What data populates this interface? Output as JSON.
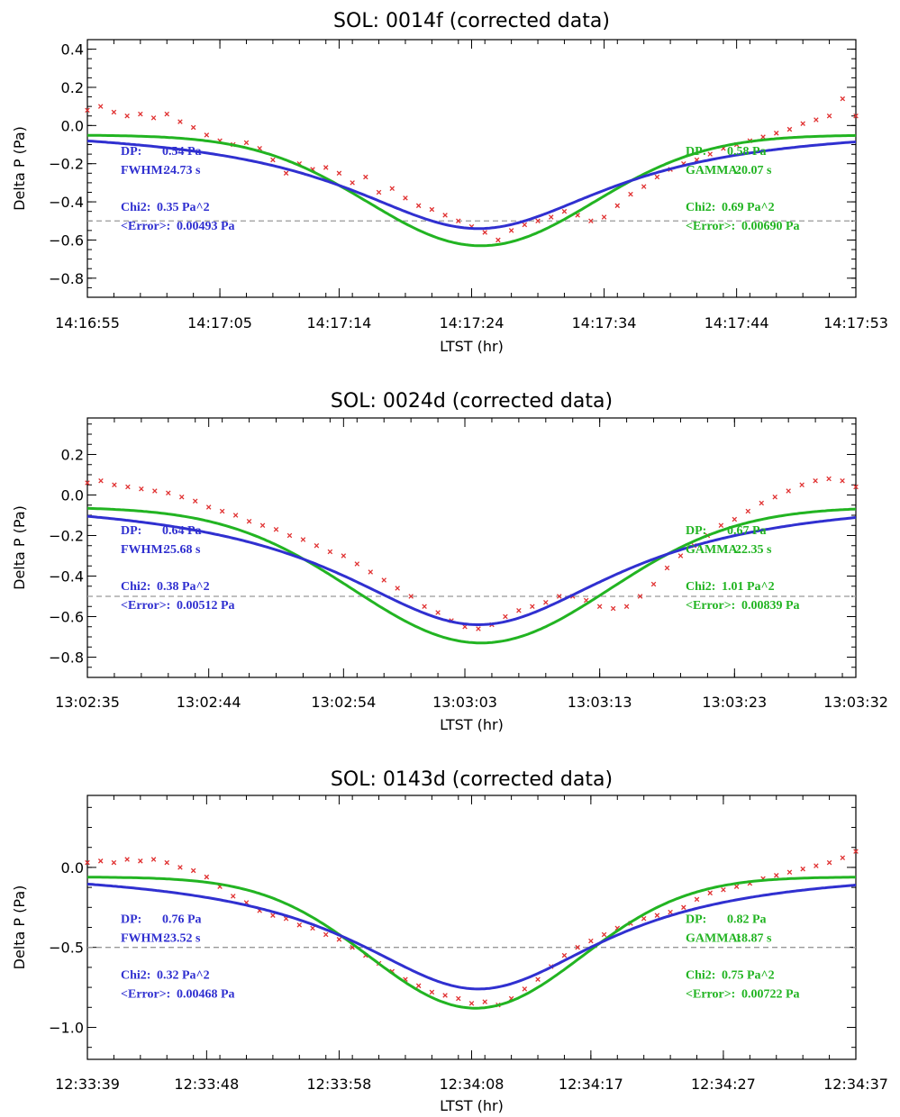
{
  "colors": {
    "lorentz": "#3030d0",
    "gauss": "#22b422",
    "data": "#e03030",
    "ref": "#999999"
  },
  "chart_data": [
    {
      "type": "line",
      "title": "SOL: 0014f (corrected data)",
      "xlabel": "LTST (hr)",
      "ylabel": "Delta P (Pa)",
      "xlim": [
        0,
        58
      ],
      "ylim": [
        -0.9,
        0.45
      ],
      "x_ticks": [
        {
          "x": 0,
          "label": "14:16:55"
        },
        {
          "x": 10,
          "label": "14:17:05"
        },
        {
          "x": 19,
          "label": "14:17:14"
        },
        {
          "x": 29,
          "label": "14:17:24"
        },
        {
          "x": 39,
          "label": "14:17:34"
        },
        {
          "x": 49,
          "label": "14:17:44"
        },
        {
          "x": 58,
          "label": "14:17:53"
        }
      ],
      "y_ticks": [
        {
          "y": 0.4,
          "label": "0.4"
        },
        {
          "y": 0.2,
          "label": "0.2"
        },
        {
          "y": 0.0,
          "label": "0.0"
        },
        {
          "y": -0.2,
          "label": "−0.2"
        },
        {
          "y": -0.4,
          "label": "−0.4"
        },
        {
          "y": -0.6,
          "label": "−0.6"
        },
        {
          "y": -0.8,
          "label": "−0.8"
        }
      ],
      "ref_line": -0.5,
      "lorentz": {
        "amp": 0.54,
        "center": 29.5,
        "fwhm": 24.73,
        "baseline": 0.0
      },
      "gauss": {
        "amp": 0.58,
        "center": 29.7,
        "fwhm": 20.07,
        "baseline": -0.05
      },
      "data_points": [
        [
          0,
          0.08
        ],
        [
          1,
          0.1
        ],
        [
          2,
          0.07
        ],
        [
          3,
          0.05
        ],
        [
          4,
          0.06
        ],
        [
          5,
          0.04
        ],
        [
          6,
          0.06
        ],
        [
          7,
          0.02
        ],
        [
          8,
          -0.01
        ],
        [
          9,
          -0.05
        ],
        [
          10,
          -0.08
        ],
        [
          11,
          -0.1
        ],
        [
          12,
          -0.09
        ],
        [
          13,
          -0.12
        ],
        [
          14,
          -0.18
        ],
        [
          15,
          -0.25
        ],
        [
          16,
          -0.2
        ],
        [
          17,
          -0.23
        ],
        [
          18,
          -0.22
        ],
        [
          19,
          -0.25
        ],
        [
          20,
          -0.3
        ],
        [
          21,
          -0.27
        ],
        [
          22,
          -0.35
        ],
        [
          23,
          -0.33
        ],
        [
          24,
          -0.38
        ],
        [
          25,
          -0.42
        ],
        [
          26,
          -0.44
        ],
        [
          27,
          -0.47
        ],
        [
          28,
          -0.5
        ],
        [
          29,
          -0.53
        ],
        [
          30,
          -0.56
        ],
        [
          31,
          -0.6
        ],
        [
          32,
          -0.55
        ],
        [
          33,
          -0.52
        ],
        [
          34,
          -0.5
        ],
        [
          35,
          -0.48
        ],
        [
          36,
          -0.45
        ],
        [
          37,
          -0.47
        ],
        [
          38,
          -0.5
        ],
        [
          39,
          -0.48
        ],
        [
          40,
          -0.42
        ],
        [
          41,
          -0.36
        ],
        [
          42,
          -0.32
        ],
        [
          43,
          -0.27
        ],
        [
          44,
          -0.23
        ],
        [
          45,
          -0.2
        ],
        [
          46,
          -0.18
        ],
        [
          47,
          -0.15
        ],
        [
          48,
          -0.12
        ],
        [
          49,
          -0.1
        ],
        [
          50,
          -0.08
        ],
        [
          51,
          -0.06
        ],
        [
          52,
          -0.04
        ],
        [
          53,
          -0.02
        ],
        [
          54,
          0.01
        ],
        [
          55,
          0.03
        ],
        [
          56,
          0.05
        ],
        [
          57,
          0.14
        ],
        [
          58,
          0.05
        ]
      ],
      "left_text": {
        "dp_label": "DP:",
        "dp_value": "0.54 Pa",
        "width_label": "FWHM:",
        "width_value": "24.73 s",
        "chi_label": "Chi2:",
        "chi_value": "0.35 Pa^2",
        "err_label": "<Error>:",
        "err_value": "0.00493 Pa"
      },
      "right_text": {
        "dp_label": "DP:",
        "dp_value": "0.58 Pa",
        "width_label": "GAMMA:",
        "width_value": "20.07 s",
        "chi_label": "Chi2:",
        "chi_value": "0.69 Pa^2",
        "err_label": "<Error>:",
        "err_value": "0.00690 Pa"
      }
    },
    {
      "type": "line",
      "title": "SOL: 0024d (corrected data)",
      "xlabel": "LTST (hr)",
      "ylabel": "Delta P (Pa)",
      "xlim": [
        0,
        57
      ],
      "ylim": [
        -0.9,
        0.38
      ],
      "x_ticks": [
        {
          "x": 0,
          "label": "13:02:35"
        },
        {
          "x": 9,
          "label": "13:02:44"
        },
        {
          "x": 19,
          "label": "13:02:54"
        },
        {
          "x": 28,
          "label": "13:03:03"
        },
        {
          "x": 38,
          "label": "13:03:13"
        },
        {
          "x": 48,
          "label": "13:03:23"
        },
        {
          "x": 57,
          "label": "13:03:32"
        }
      ],
      "y_ticks": [
        {
          "y": 0.2,
          "label": "0.2"
        },
        {
          "y": 0.0,
          "label": "0.0"
        },
        {
          "y": -0.2,
          "label": "−0.2"
        },
        {
          "y": -0.4,
          "label": "−0.4"
        },
        {
          "y": -0.6,
          "label": "−0.6"
        },
        {
          "y": -0.8,
          "label": "−0.8"
        }
      ],
      "ref_line": -0.5,
      "lorentz": {
        "amp": 0.64,
        "center": 29.0,
        "fwhm": 25.68,
        "baseline": 0.0
      },
      "gauss": {
        "amp": 0.67,
        "center": 29.2,
        "fwhm": 22.35,
        "baseline": -0.06
      },
      "data_points": [
        [
          0,
          0.06
        ],
        [
          1,
          0.07
        ],
        [
          2,
          0.05
        ],
        [
          3,
          0.04
        ],
        [
          4,
          0.03
        ],
        [
          5,
          0.02
        ],
        [
          6,
          0.01
        ],
        [
          7,
          -0.01
        ],
        [
          8,
          -0.03
        ],
        [
          9,
          -0.06
        ],
        [
          10,
          -0.08
        ],
        [
          11,
          -0.1
        ],
        [
          12,
          -0.13
        ],
        [
          13,
          -0.15
        ],
        [
          14,
          -0.17
        ],
        [
          15,
          -0.2
        ],
        [
          16,
          -0.22
        ],
        [
          17,
          -0.25
        ],
        [
          18,
          -0.28
        ],
        [
          19,
          -0.3
        ],
        [
          20,
          -0.34
        ],
        [
          21,
          -0.38
        ],
        [
          22,
          -0.42
        ],
        [
          23,
          -0.46
        ],
        [
          24,
          -0.5
        ],
        [
          25,
          -0.55
        ],
        [
          26,
          -0.58
        ],
        [
          27,
          -0.62
        ],
        [
          28,
          -0.65
        ],
        [
          29,
          -0.66
        ],
        [
          30,
          -0.64
        ],
        [
          31,
          -0.6
        ],
        [
          32,
          -0.57
        ],
        [
          33,
          -0.55
        ],
        [
          34,
          -0.53
        ],
        [
          35,
          -0.5
        ],
        [
          36,
          -0.5
        ],
        [
          37,
          -0.52
        ],
        [
          38,
          -0.55
        ],
        [
          39,
          -0.56
        ],
        [
          40,
          -0.55
        ],
        [
          41,
          -0.5
        ],
        [
          42,
          -0.44
        ],
        [
          43,
          -0.36
        ],
        [
          44,
          -0.3
        ],
        [
          45,
          -0.25
        ],
        [
          46,
          -0.2
        ],
        [
          47,
          -0.15
        ],
        [
          48,
          -0.12
        ],
        [
          49,
          -0.08
        ],
        [
          50,
          -0.04
        ],
        [
          51,
          -0.01
        ],
        [
          52,
          0.02
        ],
        [
          53,
          0.05
        ],
        [
          54,
          0.07
        ],
        [
          55,
          0.08
        ],
        [
          56,
          0.07
        ],
        [
          57,
          0.04
        ]
      ],
      "left_text": {
        "dp_label": "DP:",
        "dp_value": "0.64 Pa",
        "width_label": "FWHM:",
        "width_value": "25.68 s",
        "chi_label": "Chi2:",
        "chi_value": "0.38 Pa^2",
        "err_label": "<Error>:",
        "err_value": "0.00512 Pa"
      },
      "right_text": {
        "dp_label": "DP:",
        "dp_value": "0.67 Pa",
        "width_label": "GAMMA:",
        "width_value": "22.35 s",
        "chi_label": "Chi2:",
        "chi_value": "1.01 Pa^2",
        "err_label": "<Error>:",
        "err_value": "0.00839 Pa"
      }
    },
    {
      "type": "line",
      "title": "SOL: 0143d (corrected data)",
      "xlabel": "LTST (hr)",
      "ylabel": "Delta P (Pa)",
      "xlim": [
        0,
        58
      ],
      "ylim": [
        -1.2,
        0.45
      ],
      "x_ticks": [
        {
          "x": 0,
          "label": "12:33:39"
        },
        {
          "x": 9,
          "label": "12:33:48"
        },
        {
          "x": 19,
          "label": "12:33:58"
        },
        {
          "x": 29,
          "label": "12:34:08"
        },
        {
          "x": 38,
          "label": "12:34:17"
        },
        {
          "x": 48,
          "label": "12:34:27"
        },
        {
          "x": 58,
          "label": "12:34:37"
        }
      ],
      "y_ticks": [
        {
          "y": 0.0,
          "label": "0.0"
        },
        {
          "y": -0.5,
          "label": "−0.5"
        },
        {
          "y": -1.0,
          "label": "−1.0"
        }
      ],
      "ref_line": -0.5,
      "lorentz": {
        "amp": 0.76,
        "center": 29.5,
        "fwhm": 23.52,
        "baseline": 0.0
      },
      "gauss": {
        "amp": 0.82,
        "center": 29.3,
        "fwhm": 18.87,
        "baseline": -0.06
      },
      "data_points": [
        [
          0,
          0.03
        ],
        [
          1,
          0.04
        ],
        [
          2,
          0.03
        ],
        [
          3,
          0.05
        ],
        [
          4,
          0.04
        ],
        [
          5,
          0.05
        ],
        [
          6,
          0.03
        ],
        [
          7,
          0.0
        ],
        [
          8,
          -0.02
        ],
        [
          9,
          -0.06
        ],
        [
          10,
          -0.12
        ],
        [
          11,
          -0.18
        ],
        [
          12,
          -0.22
        ],
        [
          13,
          -0.27
        ],
        [
          14,
          -0.3
        ],
        [
          15,
          -0.32
        ],
        [
          16,
          -0.36
        ],
        [
          17,
          -0.38
        ],
        [
          18,
          -0.42
        ],
        [
          19,
          -0.45
        ],
        [
          20,
          -0.5
        ],
        [
          21,
          -0.55
        ],
        [
          22,
          -0.6
        ],
        [
          23,
          -0.65
        ],
        [
          24,
          -0.7
        ],
        [
          25,
          -0.74
        ],
        [
          26,
          -0.78
        ],
        [
          27,
          -0.8
        ],
        [
          28,
          -0.82
        ],
        [
          29,
          -0.85
        ],
        [
          30,
          -0.84
        ],
        [
          31,
          -0.86
        ],
        [
          32,
          -0.82
        ],
        [
          33,
          -0.76
        ],
        [
          34,
          -0.7
        ],
        [
          35,
          -0.62
        ],
        [
          36,
          -0.55
        ],
        [
          37,
          -0.5
        ],
        [
          38,
          -0.46
        ],
        [
          39,
          -0.42
        ],
        [
          40,
          -0.38
        ],
        [
          41,
          -0.35
        ],
        [
          42,
          -0.32
        ],
        [
          43,
          -0.3
        ],
        [
          44,
          -0.28
        ],
        [
          45,
          -0.25
        ],
        [
          46,
          -0.2
        ],
        [
          47,
          -0.16
        ],
        [
          48,
          -0.14
        ],
        [
          49,
          -0.12
        ],
        [
          50,
          -0.1
        ],
        [
          51,
          -0.07
        ],
        [
          52,
          -0.05
        ],
        [
          53,
          -0.03
        ],
        [
          54,
          -0.01
        ],
        [
          55,
          0.01
        ],
        [
          56,
          0.03
        ],
        [
          57,
          0.06
        ],
        [
          58,
          0.1
        ]
      ],
      "left_text": {
        "dp_label": "DP:",
        "dp_value": "0.76 Pa",
        "width_label": "FWHM:",
        "width_value": "23.52 s",
        "chi_label": "Chi2:",
        "chi_value": "0.32 Pa^2",
        "err_label": "<Error>:",
        "err_value": "0.00468 Pa"
      },
      "right_text": {
        "dp_label": "DP:",
        "dp_value": "0.82 Pa",
        "width_label": "GAMMA:",
        "width_value": "18.87 s",
        "chi_label": "Chi2:",
        "chi_value": "0.75 Pa^2",
        "err_label": "<Error>:",
        "err_value": "0.00722 Pa"
      }
    }
  ]
}
